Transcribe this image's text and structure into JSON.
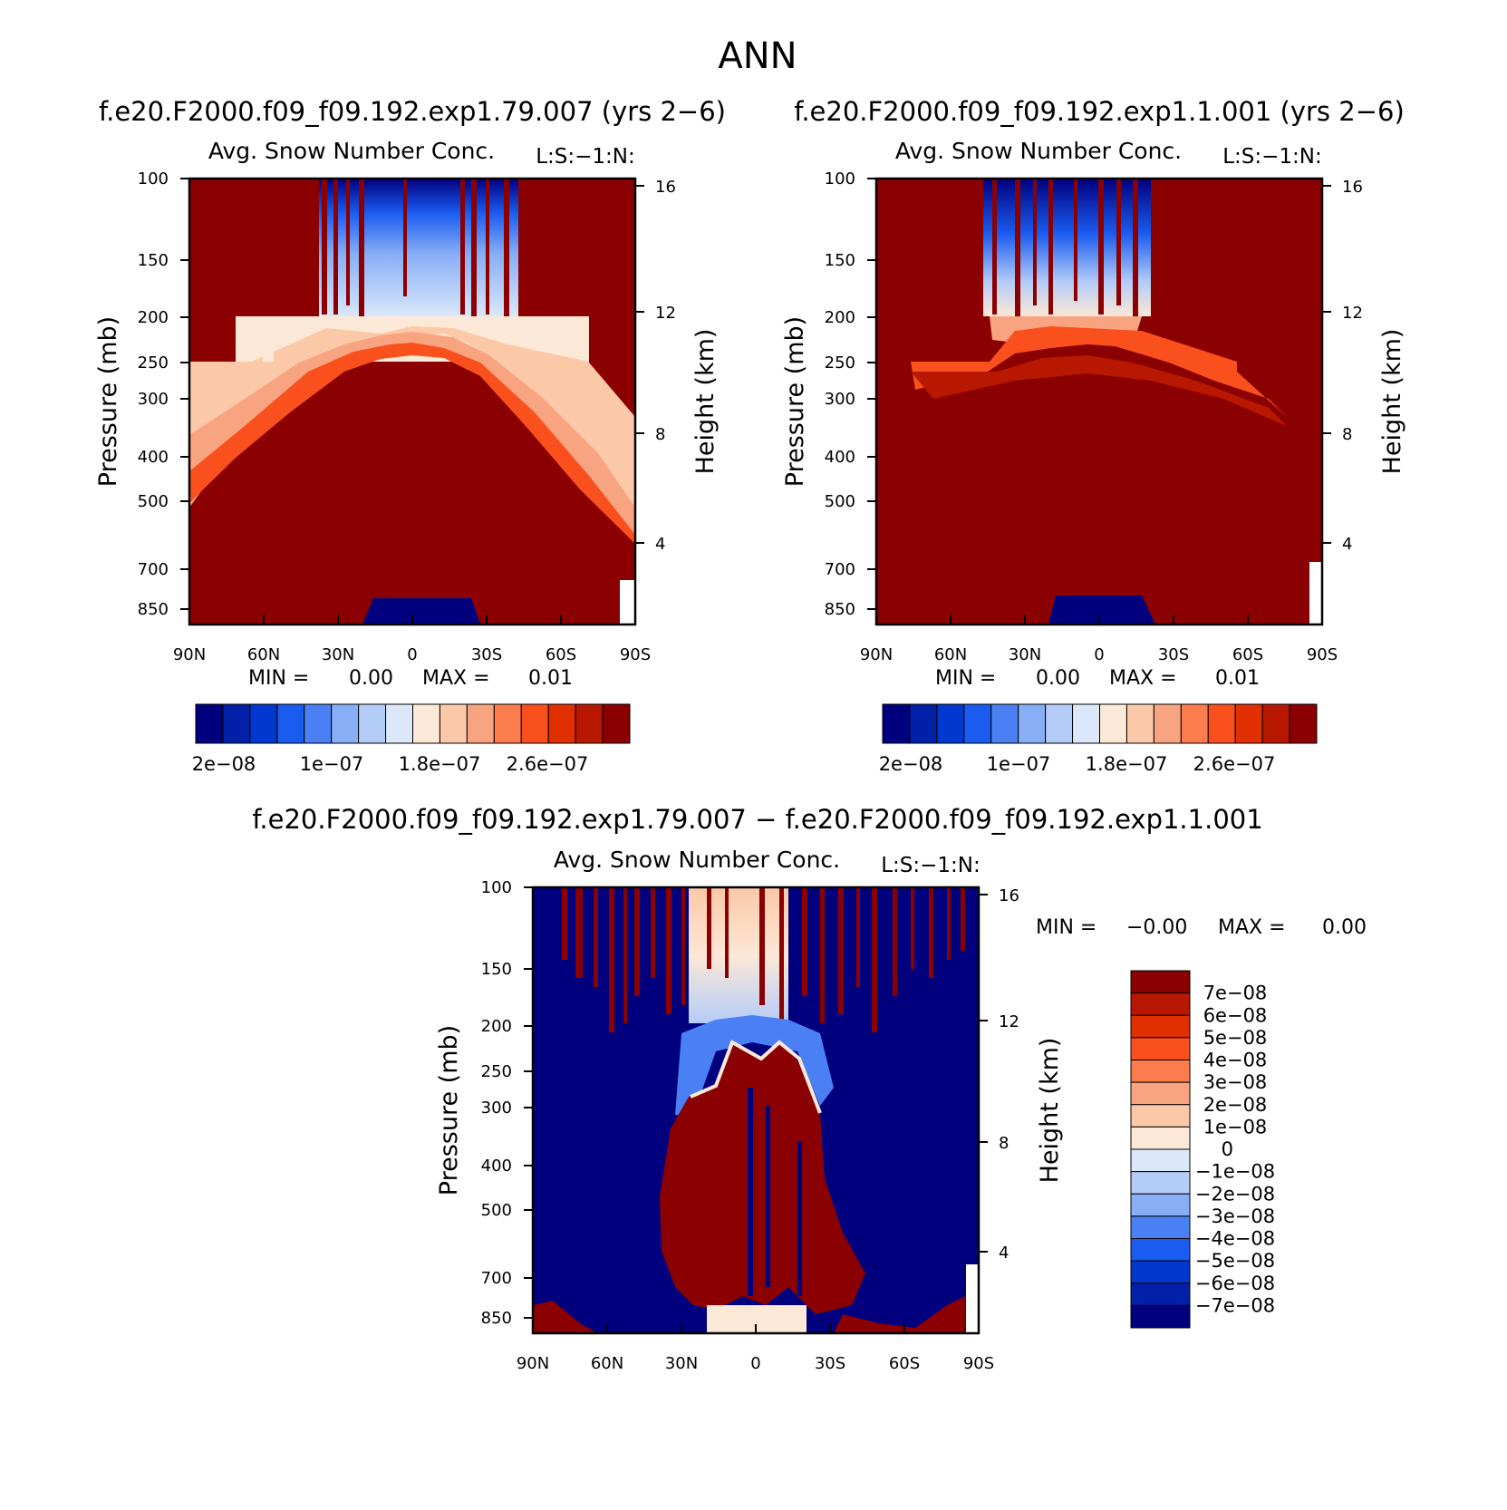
{
  "figure_title": "ANN",
  "panels": [
    {
      "case_title": "f.e20.F2000.f09_f09.192.exp1.79.007 (yrs 2−6)",
      "var_title": "Avg. Snow Number Conc.",
      "units": "L:S:−1:N:",
      "stats": {
        "min_label": "MIN =",
        "min_value": "0.00",
        "max_label": "MAX =",
        "max_value": "0.01"
      }
    },
    {
      "case_title": "f.e20.F2000.f09_f09.192.exp1.1.001 (yrs 2−6)",
      "var_title": "Avg. Snow Number Conc.",
      "units": "L:S:−1:N:",
      "stats": {
        "min_label": "MIN =",
        "min_value": "0.00",
        "max_label": "MAX =",
        "max_value": "0.01"
      }
    },
    {
      "case_title": "f.e20.F2000.f09_f09.192.exp1.79.007 − f.e20.F2000.f09_f09.192.exp1.1.001",
      "var_title": "Avg. Snow Number Conc.",
      "units": "L:S:−1:N:",
      "stats": {
        "min_label": "MIN =",
        "min_value": "−0.00",
        "max_label": "MAX =",
        "max_value": "0.00"
      }
    }
  ],
  "axes": {
    "ylabel": "Pressure (mb)",
    "y2label": "Height (km)",
    "x_ticks": [
      "90N",
      "60N",
      "30N",
      "0",
      "30S",
      "60S",
      "90S"
    ],
    "y_ticks": [
      "100",
      "150",
      "200",
      "250",
      "300",
      "400",
      "500",
      "700",
      "850"
    ],
    "y2_ticks": [
      "16",
      "12",
      "8",
      "4"
    ]
  },
  "colorbar_abs": {
    "colors": [
      "#00007f",
      "#0020a8",
      "#0038d0",
      "#1a5cf0",
      "#4a80f4",
      "#88aef6",
      "#b4ccf8",
      "#dae8f9",
      "#fce8d6",
      "#fbc8a8",
      "#f9a480",
      "#fb7c4c",
      "#f9501e",
      "#e03000",
      "#b81800",
      "#8b0000"
    ],
    "labels": [
      "2e−08",
      "1e−07",
      "1.8e−07",
      "2.6e−07"
    ]
  },
  "colorbar_diff": {
    "colors": [
      "#8b0000",
      "#b81800",
      "#e03000",
      "#f9501e",
      "#fb7c4c",
      "#f9a480",
      "#fbc8a8",
      "#fce8d6",
      "#dae8f9",
      "#b4ccf8",
      "#88aef6",
      "#4a80f4",
      "#1a5cf0",
      "#0038d0",
      "#0020a8",
      "#00007f"
    ],
    "labels": [
      "7e−08",
      "6e−08",
      "5e−08",
      "4e−08",
      "3e−08",
      "2e−08",
      "1e−08",
      "0",
      "−1e−08",
      "−2e−08",
      "−3e−08",
      "−4e−08",
      "−5e−08",
      "−6e−08",
      "−7e−08"
    ]
  },
  "chart_data": [
    {
      "type": "heatmap",
      "title": "Avg. Snow Number Conc.",
      "xlabel": "",
      "ylabel": "Pressure (mb)",
      "y2label": "Height (km)",
      "x_categories": [
        "90N",
        "60N",
        "30N",
        "0",
        "30S",
        "60S",
        "90S"
      ],
      "y_ticks_mb": [
        100,
        150,
        200,
        250,
        300,
        400,
        500,
        700,
        850
      ],
      "y2_ticks_km": [
        16,
        12,
        8,
        4
      ],
      "ylim_mb": [
        100,
        1000
      ],
      "log_y": true,
      "min": 0.0,
      "max": 0.01,
      "levels": [
        2e-08,
        1e-07,
        1.8e-07,
        2.6e-07
      ]
    },
    {
      "type": "heatmap",
      "title": "Avg. Snow Number Conc.",
      "xlabel": "",
      "ylabel": "Pressure (mb)",
      "y2label": "Height (km)",
      "x_categories": [
        "90N",
        "60N",
        "30N",
        "0",
        "30S",
        "60S",
        "90S"
      ],
      "y_ticks_mb": [
        100,
        150,
        200,
        250,
        300,
        400,
        500,
        700,
        850
      ],
      "y2_ticks_km": [
        16,
        12,
        8,
        4
      ],
      "ylim_mb": [
        100,
        1000
      ],
      "log_y": true,
      "min": 0.0,
      "max": 0.01,
      "levels": [
        2e-08,
        1e-07,
        1.8e-07,
        2.6e-07
      ]
    },
    {
      "type": "heatmap",
      "title": "Avg. Snow Number Conc.",
      "xlabel": "",
      "ylabel": "Pressure (mb)",
      "y2label": "Height (km)",
      "x_categories": [
        "90N",
        "60N",
        "30N",
        "0",
        "30S",
        "60S",
        "90S"
      ],
      "y_ticks_mb": [
        100,
        150,
        200,
        250,
        300,
        400,
        500,
        700,
        850
      ],
      "y2_ticks_km": [
        16,
        12,
        8,
        4
      ],
      "ylim_mb": [
        100,
        1000
      ],
      "log_y": true,
      "min": -0.0,
      "max": 0.0,
      "levels": [
        7e-08,
        6e-08,
        5e-08,
        4e-08,
        3e-08,
        2e-08,
        1e-08,
        0,
        -1e-08,
        -2e-08,
        -3e-08,
        -4e-08,
        -5e-08,
        -6e-08,
        -7e-08
      ]
    }
  ]
}
